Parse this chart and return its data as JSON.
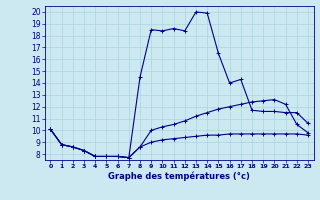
{
  "title": "Graphe des températures (°c)",
  "bg_color": "#cce8f0",
  "line_color": "#00008b",
  "grid_color": "#aad4e0",
  "xlim": [
    -0.5,
    23.5
  ],
  "ylim": [
    7.5,
    20.5
  ],
  "xticks": [
    0,
    1,
    2,
    3,
    4,
    5,
    6,
    7,
    8,
    9,
    10,
    11,
    12,
    13,
    14,
    15,
    16,
    17,
    18,
    19,
    20,
    21,
    22,
    23
  ],
  "yticks": [
    8,
    9,
    10,
    11,
    12,
    13,
    14,
    15,
    16,
    17,
    18,
    19,
    20
  ],
  "curve2_x": [
    0,
    1,
    2,
    3,
    4,
    5,
    6,
    7,
    8,
    9,
    10,
    11,
    12,
    13,
    14,
    15,
    16,
    17,
    18,
    19,
    20,
    21,
    22,
    23
  ],
  "curve2_y": [
    10.1,
    8.8,
    8.6,
    8.3,
    7.8,
    7.8,
    7.8,
    7.7,
    14.5,
    18.5,
    18.4,
    18.6,
    18.4,
    20.0,
    19.9,
    16.5,
    14.0,
    14.3,
    11.7,
    11.6,
    11.6,
    11.5,
    11.5,
    10.6
  ],
  "curve1_x": [
    0,
    1,
    2,
    3,
    4,
    5,
    6,
    7,
    8,
    9,
    10,
    11,
    12,
    13,
    14,
    15,
    16,
    17,
    18,
    19,
    20,
    21,
    22,
    23
  ],
  "curve1_y": [
    10.1,
    8.8,
    8.6,
    8.3,
    7.8,
    7.8,
    7.8,
    7.7,
    8.6,
    10.0,
    10.3,
    10.5,
    10.8,
    11.2,
    11.5,
    11.8,
    12.0,
    12.2,
    12.4,
    12.5,
    12.6,
    12.2,
    10.5,
    9.8
  ],
  "curve3_x": [
    0,
    1,
    2,
    3,
    4,
    5,
    6,
    7,
    8,
    9,
    10,
    11,
    12,
    13,
    14,
    15,
    16,
    17,
    18,
    19,
    20,
    21,
    22,
    23
  ],
  "curve3_y": [
    10.1,
    8.8,
    8.6,
    8.3,
    7.8,
    7.8,
    7.8,
    7.7,
    8.6,
    9.0,
    9.2,
    9.3,
    9.4,
    9.5,
    9.6,
    9.6,
    9.7,
    9.7,
    9.7,
    9.7,
    9.7,
    9.7,
    9.7,
    9.6
  ]
}
